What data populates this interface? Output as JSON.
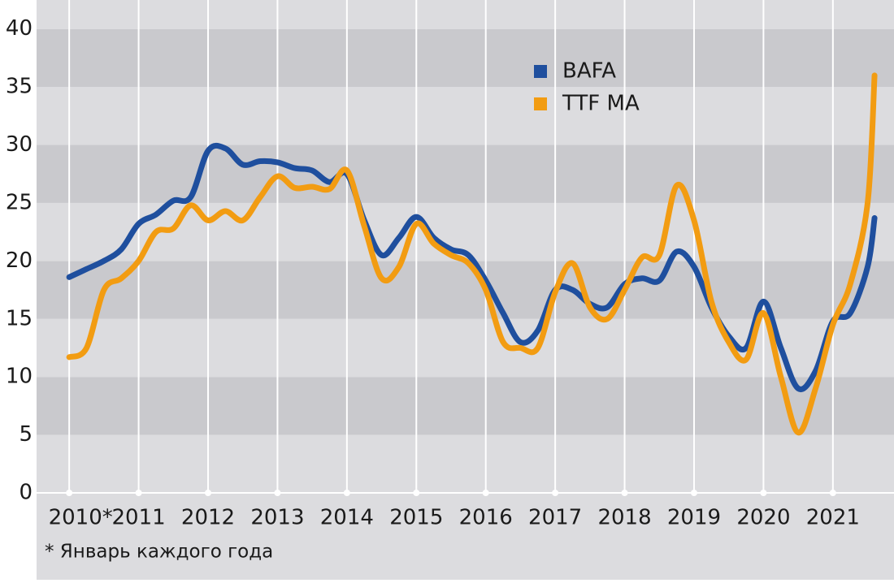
{
  "chart_data": {
    "type": "line",
    "x": [
      2010.0,
      2010.25,
      2010.5,
      2010.75,
      2011.0,
      2011.25,
      2011.5,
      2011.75,
      2012.0,
      2012.25,
      2012.5,
      2012.75,
      2013.0,
      2013.25,
      2013.5,
      2013.75,
      2014.0,
      2014.25,
      2014.5,
      2014.75,
      2015.0,
      2015.25,
      2015.5,
      2015.75,
      2016.0,
      2016.25,
      2016.5,
      2016.75,
      2017.0,
      2017.25,
      2017.5,
      2017.75,
      2018.0,
      2018.25,
      2018.5,
      2018.75,
      2019.0,
      2019.25,
      2019.5,
      2019.75,
      2020.0,
      2020.25,
      2020.5,
      2020.75,
      2021.0,
      2021.25,
      2021.5,
      2021.6
    ],
    "series": [
      {
        "name": "BAFA",
        "color": "#1f4f9e",
        "values": [
          18.6,
          19.3,
          20.0,
          21.0,
          23.2,
          24.0,
          25.2,
          25.5,
          29.5,
          29.7,
          28.3,
          28.6,
          28.5,
          28.0,
          27.8,
          26.8,
          27.5,
          23.5,
          20.5,
          22.0,
          23.8,
          22.0,
          21.0,
          20.5,
          18.3,
          15.5,
          13.0,
          14.0,
          17.5,
          17.5,
          16.3,
          16.0,
          18.0,
          18.5,
          18.3,
          20.8,
          19.5,
          16.0,
          13.5,
          12.5,
          16.5,
          12.5,
          9.0,
          10.5,
          14.8,
          15.5,
          19.5,
          23.7
        ]
      },
      {
        "name": "TTF MA",
        "color": "#f29c12",
        "values": [
          11.7,
          12.5,
          17.5,
          18.5,
          20.0,
          22.5,
          22.8,
          24.8,
          23.5,
          24.3,
          23.5,
          25.5,
          27.3,
          26.3,
          26.4,
          26.2,
          27.8,
          23.0,
          18.5,
          19.5,
          23.2,
          21.5,
          20.5,
          19.8,
          17.5,
          13.0,
          12.5,
          12.5,
          17.3,
          19.8,
          16.0,
          15.0,
          17.5,
          20.3,
          20.5,
          26.5,
          23.5,
          16.5,
          13.0,
          11.5,
          15.5,
          10.0,
          5.2,
          9.0,
          14.5,
          18.0,
          25.0,
          36.0
        ]
      }
    ],
    "xlim": [
      2009.53,
      2021.88
    ],
    "xticks": [
      {
        "value": 2010,
        "label": "2010*"
      },
      2011,
      2012,
      2013,
      2014,
      2015,
      2016,
      2017,
      2018,
      2019,
      2020,
      2021
    ],
    "ylim": [
      0,
      42.5
    ],
    "yticks": [
      0,
      5,
      10,
      15,
      20,
      25,
      30,
      35,
      40
    ],
    "grid": true,
    "legend": "top-right",
    "note": "* Январь каждого года"
  }
}
